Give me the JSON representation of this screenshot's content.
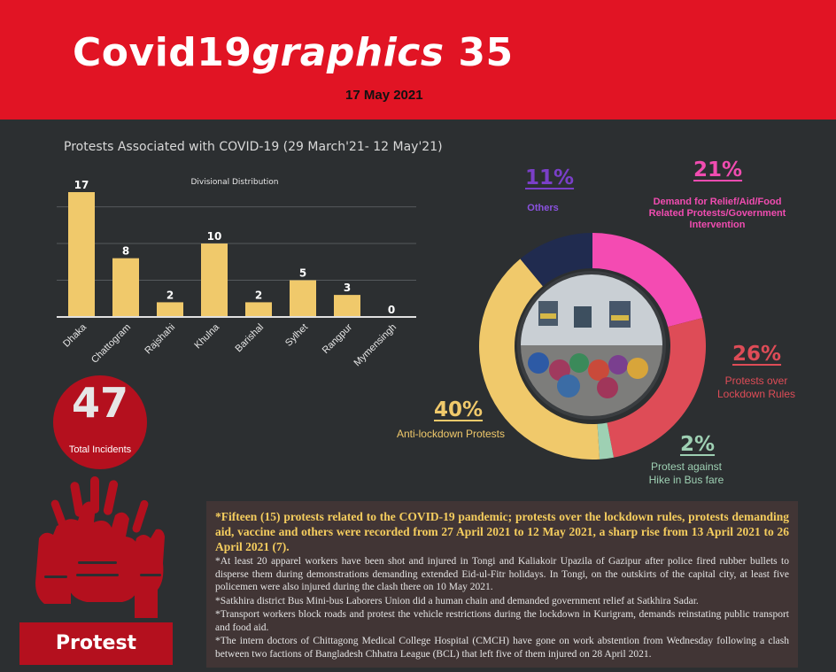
{
  "header": {
    "brand_main": "Covid19",
    "brand_italic": "graphics",
    "brand_number": " 35",
    "date": "17 May 2021"
  },
  "bar_section": {
    "title": "Protests Associated with COVID-19 (29 March'21- 12 May'21)"
  },
  "incidents": {
    "value": "47",
    "label": "Total Incidents"
  },
  "protest_label": "Protest",
  "chart_data": [
    {
      "type": "bar",
      "title": "Divisional Distribution",
      "categories": [
        "Dhaka",
        "Chattogram",
        "Rajshahi",
        "Khulna",
        "Barishal",
        "Sylhet",
        "Rangpur",
        "Mymensingh"
      ],
      "values": [
        17,
        8,
        2,
        10,
        2,
        5,
        3,
        0
      ],
      "ylim": [
        0,
        18
      ],
      "grid": true,
      "color": "#f0c96b"
    },
    {
      "type": "pie",
      "variant": "donut",
      "series": [
        {
          "name": "Demand for Relief/Aid/Food Related Protests/Government Intervention",
          "value": 21,
          "label": "21%",
          "color": "#f44bb2"
        },
        {
          "name": "Protests over Lockdown Rules",
          "value": 26,
          "label": "26%",
          "color": "#de4c57"
        },
        {
          "name": "Protest against Hike in Bus fare",
          "value": 2,
          "label": "2%",
          "color": "#9ed0b3"
        },
        {
          "name": "Anti-lockdown Protests",
          "value": 40,
          "label": "40%",
          "color": "#f0c96b"
        },
        {
          "name": "Others",
          "value": 11,
          "label": "11%",
          "color": "#202b4f"
        }
      ]
    }
  ],
  "donut_labels": {
    "others_pct": "11%",
    "others_lbl": "Others",
    "relief_pct": "21%",
    "relief_lbl": "Demand for Relief/Aid/Food Related Protests/Government Intervention",
    "lockdown_pct": "26%",
    "lockdown_lbl": "Protests over Lockdown Rules",
    "bus_pct": "2%",
    "bus_lbl": "Protest against Hike in Bus fare",
    "anti_pct": "40%",
    "anti_lbl": "Anti-lockdown Protests"
  },
  "notes": {
    "lead": "*Fifteen (15) protests related to the COVID-19 pandemic; protests over the lockdown rules, protests demanding aid, vaccine and others were recorded from 27 April 2021 to 12 May 2021, a sharp rise from 13 April 2021 to 26 April 2021 (7).",
    "items": [
      "*At least 20 apparel workers have been shot and injured in Tongi and Kaliakoir Upazila of Gazipur after police fired rubber bullets to disperse them during demonstrations demanding extended Eid-ul-Fitr holidays. In Tongi, on the outskirts of the capital city, at least five policemen were also injured during the clash there on 10 May 2021.",
      "*Satkhira district Bus Mini-bus Laborers Union did a human chain and demanded government relief at Satkhira Sadar.",
      "*Transport workers block roads and protest the vehicle restrictions during the lockdown in Kurigram, demands reinstating public transport and food aid.",
      "*The intern doctors of Chittagong Medical College Hospital (CMCH) have gone on work abstention from Wednesday following a clash between two factions of Bangladesh Chhatra League (BCL) that left five of them injured on 28 April 2021."
    ]
  }
}
